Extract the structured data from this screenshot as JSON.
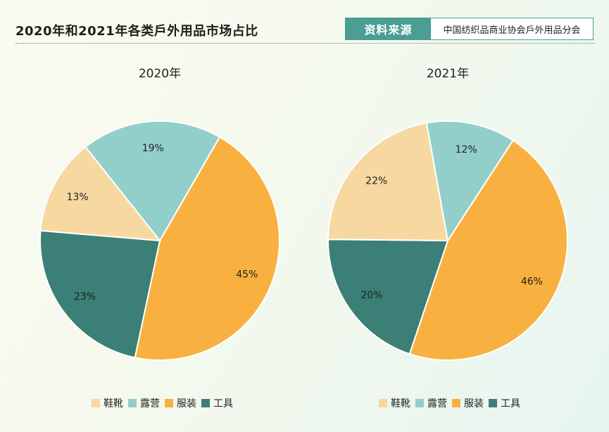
{
  "header": {
    "title": "2020年和2021年各类戶外用品市场占比",
    "source_label": "资料来源",
    "source_text": "中国纺织品商业协会戶外用品分会"
  },
  "colors": {
    "鞋靴": "#f7d8a1",
    "露营": "#93cfca",
    "服装": "#f8b140",
    "工具": "#3b7f76"
  },
  "chart_data": [
    {
      "type": "pie",
      "title": "2020年",
      "legend_position": "bottom",
      "slices": [
        {
          "label": "服装",
          "value": 45,
          "display": "45%"
        },
        {
          "label": "工具",
          "value": 23,
          "display": "23%"
        },
        {
          "label": "鞋靴",
          "value": 13,
          "display": "13%"
        },
        {
          "label": "露营",
          "value": 19,
          "display": "19%"
        }
      ],
      "legend": [
        "鞋靴",
        "露营",
        "服装",
        "工具"
      ]
    },
    {
      "type": "pie",
      "title": "2021年",
      "legend_position": "bottom",
      "slices": [
        {
          "label": "服装",
          "value": 46,
          "display": "46%"
        },
        {
          "label": "工具",
          "value": 20,
          "display": "20%"
        },
        {
          "label": "鞋靴",
          "value": 22,
          "display": "22%"
        },
        {
          "label": "露营",
          "value": 12,
          "display": "12%"
        }
      ],
      "legend": [
        "鞋靴",
        "露营",
        "服装",
        "工具"
      ]
    }
  ]
}
